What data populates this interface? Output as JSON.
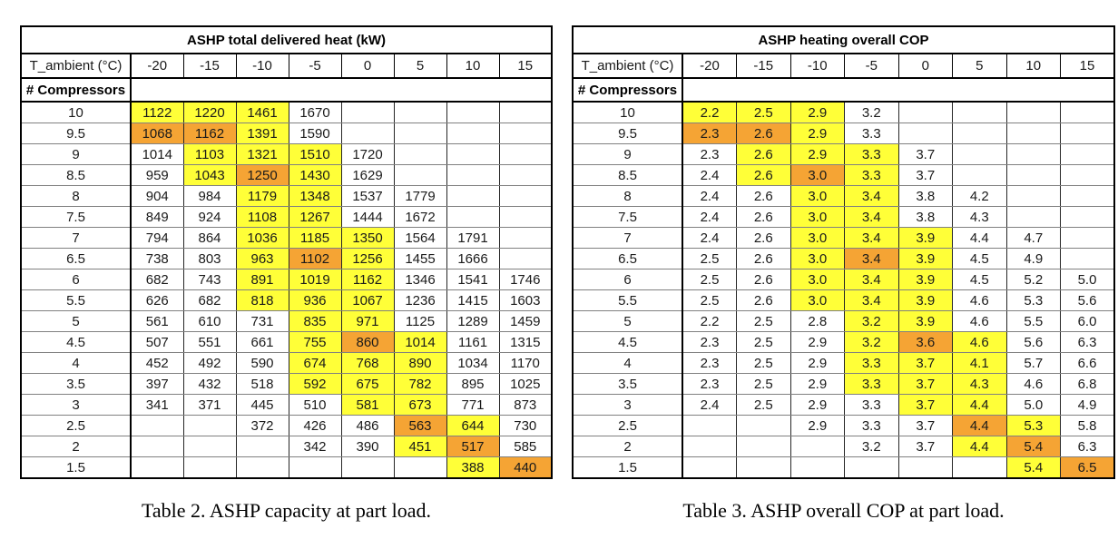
{
  "colors": {
    "highlight_yellow": "#FFFF38",
    "highlight_orange": "#F5A434"
  },
  "chart_data": [
    {
      "type": "table",
      "title": "ASHP total delivered heat (kW)",
      "corner_header": "T_ambient (°C)",
      "row_axis_label": "# Compressors",
      "columns": [
        "-20",
        "-15",
        "-10",
        "-5",
        "0",
        "5",
        "10",
        "15"
      ],
      "rows": [
        {
          "label": "10",
          "values": [
            "1122",
            "1220",
            "1461",
            "1670",
            "",
            "",
            "",
            ""
          ],
          "hl": [
            "Y",
            "Y",
            "Y",
            "",
            "",
            "",
            "",
            ""
          ]
        },
        {
          "label": "9.5",
          "values": [
            "1068",
            "1162",
            "1391",
            "1590",
            "",
            "",
            "",
            ""
          ],
          "hl": [
            "O",
            "O",
            "Y",
            "",
            "",
            "",
            "",
            ""
          ]
        },
        {
          "label": "9",
          "values": [
            "1014",
            "1103",
            "1321",
            "1510",
            "1720",
            "",
            "",
            ""
          ],
          "hl": [
            "",
            "Y",
            "Y",
            "Y",
            "",
            "",
            "",
            ""
          ]
        },
        {
          "label": "8.5",
          "values": [
            "959",
            "1043",
            "1250",
            "1430",
            "1629",
            "",
            "",
            ""
          ],
          "hl": [
            "",
            "Y",
            "O",
            "Y",
            "",
            "",
            "",
            ""
          ]
        },
        {
          "label": "8",
          "values": [
            "904",
            "984",
            "1179",
            "1348",
            "1537",
            "1779",
            "",
            ""
          ],
          "hl": [
            "",
            "",
            "Y",
            "Y",
            "",
            "",
            "",
            ""
          ]
        },
        {
          "label": "7.5",
          "values": [
            "849",
            "924",
            "1108",
            "1267",
            "1444",
            "1672",
            "",
            ""
          ],
          "hl": [
            "",
            "",
            "Y",
            "Y",
            "",
            "",
            "",
            ""
          ]
        },
        {
          "label": "7",
          "values": [
            "794",
            "864",
            "1036",
            "1185",
            "1350",
            "1564",
            "1791",
            ""
          ],
          "hl": [
            "",
            "",
            "Y",
            "Y",
            "Y",
            "",
            "",
            ""
          ]
        },
        {
          "label": "6.5",
          "values": [
            "738",
            "803",
            "963",
            "1102",
            "1256",
            "1455",
            "1666",
            ""
          ],
          "hl": [
            "",
            "",
            "Y",
            "O",
            "Y",
            "",
            "",
            ""
          ]
        },
        {
          "label": "6",
          "values": [
            "682",
            "743",
            "891",
            "1019",
            "1162",
            "1346",
            "1541",
            "1746"
          ],
          "hl": [
            "",
            "",
            "Y",
            "Y",
            "Y",
            "",
            "",
            ""
          ]
        },
        {
          "label": "5.5",
          "values": [
            "626",
            "682",
            "818",
            "936",
            "1067",
            "1236",
            "1415",
            "1603"
          ],
          "hl": [
            "",
            "",
            "Y",
            "Y",
            "Y",
            "",
            "",
            ""
          ]
        },
        {
          "label": "5",
          "values": [
            "561",
            "610",
            "731",
            "835",
            "971",
            "1125",
            "1289",
            "1459"
          ],
          "hl": [
            "",
            "",
            "",
            "Y",
            "Y",
            "",
            "",
            ""
          ]
        },
        {
          "label": "4.5",
          "values": [
            "507",
            "551",
            "661",
            "755",
            "860",
            "1014",
            "1161",
            "1315"
          ],
          "hl": [
            "",
            "",
            "",
            "Y",
            "O",
            "Y",
            "",
            ""
          ]
        },
        {
          "label": "4",
          "values": [
            "452",
            "492",
            "590",
            "674",
            "768",
            "890",
            "1034",
            "1170"
          ],
          "hl": [
            "",
            "",
            "",
            "Y",
            "Y",
            "Y",
            "",
            ""
          ]
        },
        {
          "label": "3.5",
          "values": [
            "397",
            "432",
            "518",
            "592",
            "675",
            "782",
            "895",
            "1025"
          ],
          "hl": [
            "",
            "",
            "",
            "Y",
            "Y",
            "Y",
            "",
            ""
          ]
        },
        {
          "label": "3",
          "values": [
            "341",
            "371",
            "445",
            "510",
            "581",
            "673",
            "771",
            "873"
          ],
          "hl": [
            "",
            "",
            "",
            "",
            "Y",
            "Y",
            "",
            ""
          ]
        },
        {
          "label": "2.5",
          "values": [
            "",
            "",
            "372",
            "426",
            "486",
            "563",
            "644",
            "730"
          ],
          "hl": [
            "",
            "",
            "",
            "",
            "",
            "O",
            "Y",
            ""
          ]
        },
        {
          "label": "2",
          "values": [
            "",
            "",
            "",
            "342",
            "390",
            "451",
            "517",
            "585"
          ],
          "hl": [
            "",
            "",
            "",
            "",
            "",
            "Y",
            "O",
            ""
          ]
        },
        {
          "label": "1.5",
          "values": [
            "",
            "",
            "",
            "",
            "",
            "",
            "388",
            "440"
          ],
          "hl": [
            "",
            "",
            "",
            "",
            "",
            "",
            "Y",
            "O"
          ]
        }
      ],
      "caption": "Table 2. ASHP capacity at part load."
    },
    {
      "type": "table",
      "title": "ASHP heating overall COP",
      "corner_header": "T_ambient (°C)",
      "row_axis_label": "# Compressors",
      "columns": [
        "-20",
        "-15",
        "-10",
        "-5",
        "0",
        "5",
        "10",
        "15"
      ],
      "rows": [
        {
          "label": "10",
          "values": [
            "2.2",
            "2.5",
            "2.9",
            "3.2",
            "",
            "",
            "",
            ""
          ],
          "hl": [
            "Y",
            "Y",
            "Y",
            "",
            "",
            "",
            "",
            ""
          ]
        },
        {
          "label": "9.5",
          "values": [
            "2.3",
            "2.6",
            "2.9",
            "3.3",
            "",
            "",
            "",
            ""
          ],
          "hl": [
            "O",
            "O",
            "Y",
            "",
            "",
            "",
            "",
            ""
          ]
        },
        {
          "label": "9",
          "values": [
            "2.3",
            "2.6",
            "2.9",
            "3.3",
            "3.7",
            "",
            "",
            ""
          ],
          "hl": [
            "",
            "Y",
            "Y",
            "Y",
            "",
            "",
            "",
            ""
          ]
        },
        {
          "label": "8.5",
          "values": [
            "2.4",
            "2.6",
            "3.0",
            "3.3",
            "3.7",
            "",
            "",
            ""
          ],
          "hl": [
            "",
            "Y",
            "O",
            "Y",
            "",
            "",
            "",
            ""
          ]
        },
        {
          "label": "8",
          "values": [
            "2.4",
            "2.6",
            "3.0",
            "3.4",
            "3.8",
            "4.2",
            "",
            ""
          ],
          "hl": [
            "",
            "",
            "Y",
            "Y",
            "",
            "",
            "",
            ""
          ]
        },
        {
          "label": "7.5",
          "values": [
            "2.4",
            "2.6",
            "3.0",
            "3.4",
            "3.8",
            "4.3",
            "",
            ""
          ],
          "hl": [
            "",
            "",
            "Y",
            "Y",
            "",
            "",
            "",
            ""
          ]
        },
        {
          "label": "7",
          "values": [
            "2.4",
            "2.6",
            "3.0",
            "3.4",
            "3.9",
            "4.4",
            "4.7",
            ""
          ],
          "hl": [
            "",
            "",
            "Y",
            "Y",
            "Y",
            "",
            "",
            ""
          ]
        },
        {
          "label": "6.5",
          "values": [
            "2.5",
            "2.6",
            "3.0",
            "3.4",
            "3.9",
            "4.5",
            "4.9",
            ""
          ],
          "hl": [
            "",
            "",
            "Y",
            "O",
            "Y",
            "",
            "",
            ""
          ]
        },
        {
          "label": "6",
          "values": [
            "2.5",
            "2.6",
            "3.0",
            "3.4",
            "3.9",
            "4.5",
            "5.2",
            "5.0"
          ],
          "hl": [
            "",
            "",
            "Y",
            "Y",
            "Y",
            "",
            "",
            ""
          ]
        },
        {
          "label": "5.5",
          "values": [
            "2.5",
            "2.6",
            "3.0",
            "3.4",
            "3.9",
            "4.6",
            "5.3",
            "5.6"
          ],
          "hl": [
            "",
            "",
            "Y",
            "Y",
            "Y",
            "",
            "",
            ""
          ]
        },
        {
          "label": "5",
          "values": [
            "2.2",
            "2.5",
            "2.8",
            "3.2",
            "3.9",
            "4.6",
            "5.5",
            "6.0"
          ],
          "hl": [
            "",
            "",
            "",
            "Y",
            "Y",
            "",
            "",
            ""
          ]
        },
        {
          "label": "4.5",
          "values": [
            "2.3",
            "2.5",
            "2.9",
            "3.2",
            "3.6",
            "4.6",
            "5.6",
            "6.3"
          ],
          "hl": [
            "",
            "",
            "",
            "Y",
            "O",
            "Y",
            "",
            ""
          ]
        },
        {
          "label": "4",
          "values": [
            "2.3",
            "2.5",
            "2.9",
            "3.3",
            "3.7",
            "4.1",
            "5.7",
            "6.6"
          ],
          "hl": [
            "",
            "",
            "",
            "Y",
            "Y",
            "Y",
            "",
            ""
          ]
        },
        {
          "label": "3.5",
          "values": [
            "2.3",
            "2.5",
            "2.9",
            "3.3",
            "3.7",
            "4.3",
            "4.6",
            "6.8"
          ],
          "hl": [
            "",
            "",
            "",
            "Y",
            "Y",
            "Y",
            "",
            ""
          ]
        },
        {
          "label": "3",
          "values": [
            "2.4",
            "2.5",
            "2.9",
            "3.3",
            "3.7",
            "4.4",
            "5.0",
            "4.9"
          ],
          "hl": [
            "",
            "",
            "",
            "",
            "Y",
            "Y",
            "",
            ""
          ]
        },
        {
          "label": "2.5",
          "values": [
            "",
            "",
            "2.9",
            "3.3",
            "3.7",
            "4.4",
            "5.3",
            "5.8"
          ],
          "hl": [
            "",
            "",
            "",
            "",
            "",
            "O",
            "Y",
            ""
          ]
        },
        {
          "label": "2",
          "values": [
            "",
            "",
            "",
            "3.2",
            "3.7",
            "4.4",
            "5.4",
            "6.3"
          ],
          "hl": [
            "",
            "",
            "",
            "",
            "",
            "Y",
            "O",
            ""
          ]
        },
        {
          "label": "1.5",
          "values": [
            "",
            "",
            "",
            "",
            "",
            "",
            "5.4",
            "6.5"
          ],
          "hl": [
            "",
            "",
            "",
            "",
            "",
            "",
            "Y",
            "O"
          ]
        }
      ],
      "caption": "Table 3. ASHP overall COP at part load."
    }
  ]
}
